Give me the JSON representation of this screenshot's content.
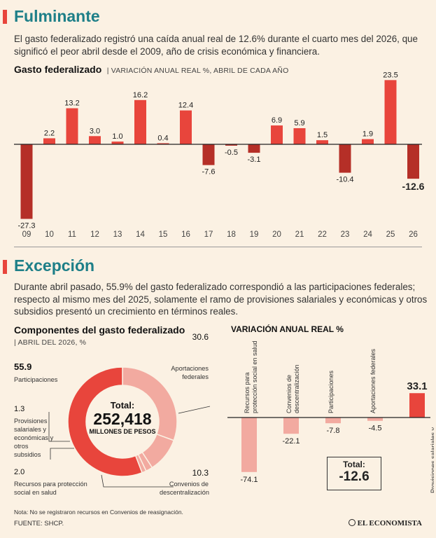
{
  "section1": {
    "title": "Fulminante",
    "paragraph": "El gasto federalizado registró una caída anual real de 12.6% durante el cuarto mes del 2026, que significó el peor abril desde el 2009, año de  crisis económica y financiera.",
    "chart_title": "Gasto federalizado",
    "chart_subtitle": "| VARIACIÓN ANUAL REAL %, ABRIL DE CADA AÑO"
  },
  "section2": {
    "title": "Excepción",
    "paragraph": "Durante abril pasado, 55.9% del gasto federalizado correspondió a las participaciones federales; respecto al mismo mes del 2025, solamente el ramo de provisiones salariales y económicas y otros subsidios presentó un crecimiento en términos reales.",
    "donut_title": "Componentes del gasto federalizado",
    "donut_subtitle": "| ABRIL DEL 2026, %",
    "total_label": "Total:",
    "total_value": "252,418",
    "total_unit": "MILLONES DE PESOS",
    "bars_title": "VARIACIÓN ANUAL REAL %",
    "bars_total_label": "Total:",
    "bars_total_value": "-12.6"
  },
  "footer": {
    "note": "Nota: No se registraron recursos en Convenios de reasignación.",
    "source": "FUENTE: SHCP.",
    "brand": "EL ECONOMISTA"
  },
  "colors": {
    "accent_teal": "#1e7f88",
    "red": "#e8453c",
    "dark_red": "#b52f27",
    "pink": "#f2aaa0",
    "background": "#fbf1e3"
  },
  "chart_data": [
    {
      "type": "bar",
      "title": "Gasto federalizado",
      "subtitle": "VARIACIÓN ANUAL REAL %, ABRIL DE CADA AÑO",
      "categories": [
        "09",
        "10",
        "11",
        "12",
        "13",
        "14",
        "15",
        "16",
        "17",
        "18",
        "19",
        "20",
        "21",
        "22",
        "23",
        "24",
        "25",
        "26"
      ],
      "values": [
        -27.3,
        2.2,
        13.2,
        3.0,
        1.0,
        16.2,
        0.4,
        12.4,
        -7.6,
        -0.5,
        -3.1,
        6.9,
        5.9,
        1.5,
        -10.4,
        1.9,
        23.5,
        -12.6
      ],
      "value_labels": [
        "-27.3",
        "2.2",
        "13.2",
        "3.0",
        "1.0",
        "16.2",
        "0.4",
        "12.4",
        "-7.6",
        "-0.5",
        "-3.1",
        "6.9",
        "5.9",
        "1.5",
        "-10.4",
        "1.9",
        "23.5",
        "-12.6"
      ],
      "ylim": [
        -28,
        24
      ]
    },
    {
      "type": "pie",
      "title": "Componentes del gasto federalizado",
      "subtitle": "ABRIL DEL 2026, %",
      "slices": [
        {
          "name": "Participaciones",
          "value": 55.9,
          "label": "55.9",
          "color": "#e8453c"
        },
        {
          "name": "Aportaciones federales",
          "value": 30.6,
          "label": "30.6",
          "color": "#f2aaa0"
        },
        {
          "name": "Convenios de descentralización",
          "value": 10.3,
          "label": "10.3",
          "color": "#f2aaa0"
        },
        {
          "name": "Recursos para protección social en salud",
          "value": 2.0,
          "label": "2.0",
          "color": "#f2aaa0"
        },
        {
          "name": "Provisiones salariales y económicas y otros subsidios",
          "value": 1.3,
          "label": "1.3",
          "color": "#f2aaa0"
        }
      ]
    },
    {
      "type": "bar",
      "title": "VARIACIÓN ANUAL REAL %",
      "categories": [
        "Recursos para protección social en salud",
        "Convenios de descentralización",
        "Participaciones",
        "Aportaciones federales",
        "Provisiones salariales y económicas y otros subsidios"
      ],
      "values": [
        -74.1,
        -22.1,
        -7.8,
        -4.5,
        33.1
      ],
      "value_labels": [
        "-74.1",
        "-22.1",
        "-7.8",
        "-4.5",
        "33.1"
      ],
      "ylim": [
        -80,
        35
      ]
    }
  ]
}
